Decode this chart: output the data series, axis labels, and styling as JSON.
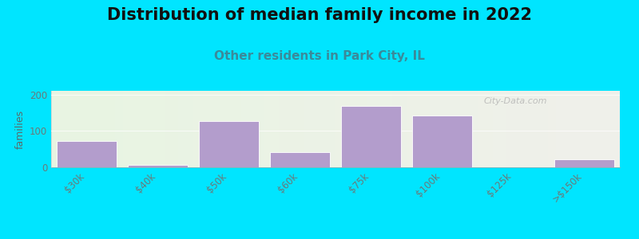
{
  "title": "Distribution of median family income in 2022",
  "subtitle": "Other residents in Park City, IL",
  "ylabel": "families",
  "categories": [
    "$30k",
    "$40k",
    "$50k",
    "$60k",
    "$75k",
    "$100k",
    "$125k",
    ">$150k"
  ],
  "values": [
    72,
    7,
    127,
    42,
    168,
    142,
    0,
    22
  ],
  "bar_color": "#b39dcc",
  "bar_edgecolor": "#ffffff",
  "background_outer": "#00e5ff",
  "background_inner_left": "#e8f5e2",
  "background_inner_right": "#f0f0eb",
  "ylim": [
    0,
    210
  ],
  "yticks": [
    0,
    100,
    200
  ],
  "watermark": "City-Data.com",
  "title_fontsize": 15,
  "subtitle_fontsize": 11,
  "subtitle_color": "#3a8a9a",
  "ylabel_color": "#5a6a6a",
  "tick_color": "#6a7a7a",
  "tick_fontsize": 8.5
}
